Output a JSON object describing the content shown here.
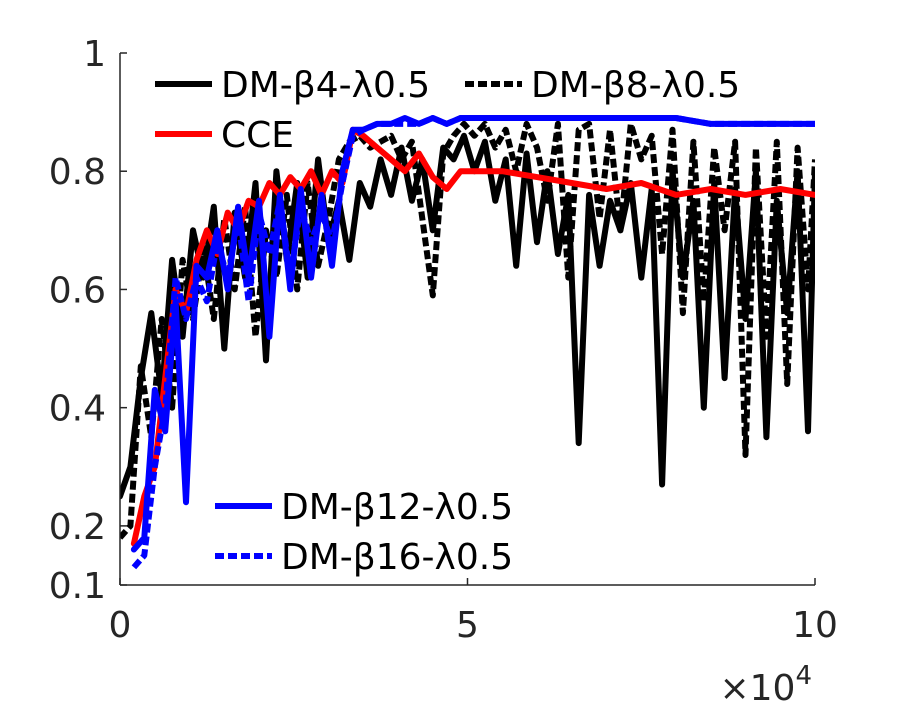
{
  "chart_data": {
    "type": "line",
    "title": "",
    "xlabel": "",
    "ylabel": "",
    "xlim": [
      0,
      10
    ],
    "ylim": [
      0.1,
      1
    ],
    "x_exponent_label": "×10",
    "x_exponent_power": "4",
    "x_ticks": [
      {
        "value": 0,
        "label": "0"
      },
      {
        "value": 5,
        "label": "5"
      },
      {
        "value": 10,
        "label": "10"
      }
    ],
    "y_ticks": [
      {
        "value": 0.1,
        "label": "0.1"
      },
      {
        "value": 0.2,
        "label": "0.2"
      },
      {
        "value": 0.4,
        "label": "0.4"
      },
      {
        "value": 0.6,
        "label": "0.6"
      },
      {
        "value": 0.8,
        "label": "0.8"
      },
      {
        "value": 1,
        "label": "1"
      }
    ],
    "grid": false,
    "legends": [
      {
        "placement": "top-left",
        "entries": [
          "DM-β4-λ0.5",
          "DM-β8-λ0.5",
          "CCE"
        ]
      },
      {
        "placement": "bottom-left",
        "entries": [
          "DM-β12-λ0.5",
          "DM-β16-λ0.5"
        ]
      }
    ],
    "series": [
      {
        "name": "DM-β4-λ0.5",
        "color": "#000000",
        "dash": "solid",
        "x": [
          0,
          0.15,
          0.3,
          0.45,
          0.6,
          0.75,
          0.9,
          1.05,
          1.2,
          1.35,
          1.5,
          1.65,
          1.8,
          1.95,
          2.1,
          2.25,
          2.4,
          2.55,
          2.7,
          2.85,
          3,
          3.15,
          3.3,
          3.45,
          3.6,
          3.75,
          3.9,
          4.05,
          4.2,
          4.35,
          4.5,
          4.65,
          4.8,
          4.95,
          5.1,
          5.25,
          5.4,
          5.55,
          5.7,
          5.85,
          6,
          6.15,
          6.3,
          6.45,
          6.6,
          6.75,
          6.9,
          7.05,
          7.2,
          7.35,
          7.5,
          7.65,
          7.8,
          7.95,
          8.1,
          8.25,
          8.4,
          8.55,
          8.7,
          8.85,
          9,
          9.15,
          9.3,
          9.45,
          9.6,
          9.75,
          9.9,
          10
        ],
        "y": [
          0.25,
          0.3,
          0.45,
          0.56,
          0.42,
          0.65,
          0.52,
          0.7,
          0.62,
          0.74,
          0.5,
          0.73,
          0.62,
          0.78,
          0.48,
          0.8,
          0.65,
          0.78,
          0.62,
          0.82,
          0.68,
          0.75,
          0.65,
          0.78,
          0.74,
          0.82,
          0.76,
          0.84,
          0.75,
          0.82,
          0.7,
          0.84,
          0.82,
          0.86,
          0.8,
          0.85,
          0.75,
          0.82,
          0.64,
          0.83,
          0.68,
          0.8,
          0.66,
          0.76,
          0.34,
          0.76,
          0.64,
          0.75,
          0.7,
          0.78,
          0.62,
          0.77,
          0.27,
          0.8,
          0.62,
          0.75,
          0.4,
          0.78,
          0.45,
          0.77,
          0.55,
          0.8,
          0.35,
          0.75,
          0.56,
          0.8,
          0.36,
          0.8
        ]
      },
      {
        "name": "DM-β8-λ0.5",
        "color": "#000000",
        "dash": "dotted",
        "x": [
          0,
          0.15,
          0.3,
          0.45,
          0.6,
          0.75,
          0.9,
          1.05,
          1.2,
          1.35,
          1.5,
          1.65,
          1.8,
          1.95,
          2.1,
          2.25,
          2.4,
          2.55,
          2.7,
          2.85,
          3,
          3.15,
          3.3,
          3.45,
          3.6,
          3.75,
          3.9,
          4.05,
          4.2,
          4.35,
          4.5,
          4.65,
          4.8,
          4.95,
          5.1,
          5.25,
          5.4,
          5.55,
          5.7,
          5.85,
          6,
          6.15,
          6.3,
          6.45,
          6.6,
          6.75,
          6.9,
          7.05,
          7.2,
          7.35,
          7.5,
          7.65,
          7.8,
          7.95,
          8.1,
          8.25,
          8.4,
          8.55,
          8.7,
          8.85,
          9,
          9.15,
          9.3,
          9.45,
          9.6,
          9.75,
          9.9,
          10
        ],
        "y": [
          0.18,
          0.2,
          0.47,
          0.35,
          0.55,
          0.4,
          0.65,
          0.55,
          0.67,
          0.55,
          0.72,
          0.6,
          0.74,
          0.52,
          0.7,
          0.62,
          0.76,
          0.6,
          0.78,
          0.64,
          0.72,
          0.82,
          0.85,
          0.86,
          0.84,
          0.85,
          0.86,
          0.82,
          0.85,
          0.72,
          0.59,
          0.83,
          0.86,
          0.88,
          0.86,
          0.88,
          0.84,
          0.87,
          0.8,
          0.88,
          0.84,
          0.75,
          0.88,
          0.62,
          0.87,
          0.88,
          0.72,
          0.87,
          0.7,
          0.88,
          0.82,
          0.86,
          0.66,
          0.87,
          0.56,
          0.85,
          0.58,
          0.84,
          0.7,
          0.85,
          0.32,
          0.84,
          0.52,
          0.85,
          0.44,
          0.84,
          0.6,
          0.82
        ]
      },
      {
        "name": "CCE",
        "color": "#ff0000",
        "dash": "solid",
        "x": [
          0.2,
          0.35,
          0.5,
          0.65,
          0.8,
          0.95,
          1.1,
          1.25,
          1.4,
          1.55,
          1.7,
          1.85,
          2,
          2.15,
          2.3,
          2.45,
          2.6,
          2.75,
          2.9,
          3.05,
          3.2,
          3.35,
          3.5,
          3.7,
          3.9,
          4.1,
          4.3,
          4.5,
          4.7,
          4.9,
          5.1,
          5.5,
          6,
          6.5,
          7,
          7.5,
          8,
          8.5,
          9,
          9.5,
          10
        ],
        "y": [
          0.17,
          0.25,
          0.3,
          0.45,
          0.6,
          0.56,
          0.65,
          0.7,
          0.66,
          0.73,
          0.7,
          0.75,
          0.74,
          0.78,
          0.76,
          0.79,
          0.77,
          0.8,
          0.76,
          0.8,
          0.78,
          0.87,
          0.86,
          0.84,
          0.82,
          0.8,
          0.83,
          0.79,
          0.77,
          0.8,
          0.8,
          0.8,
          0.79,
          0.78,
          0.77,
          0.78,
          0.76,
          0.77,
          0.76,
          0.77,
          0.76
        ]
      },
      {
        "name": "DM-β12-λ0.5",
        "color": "#0000ff",
        "dash": "solid",
        "x": [
          0.2,
          0.35,
          0.5,
          0.65,
          0.8,
          0.95,
          1.1,
          1.25,
          1.4,
          1.55,
          1.7,
          1.85,
          2,
          2.15,
          2.3,
          2.45,
          2.6,
          2.75,
          2.9,
          3.05,
          3.2,
          3.35,
          3.5,
          3.7,
          3.9,
          4.1,
          4.3,
          4.5,
          4.7,
          4.9,
          5.1,
          5.5,
          6,
          6.5,
          7,
          7.5,
          8,
          8.5,
          9,
          9.5,
          10
        ],
        "y": [
          0.16,
          0.18,
          0.43,
          0.36,
          0.58,
          0.24,
          0.64,
          0.62,
          0.7,
          0.6,
          0.74,
          0.62,
          0.75,
          0.52,
          0.76,
          0.6,
          0.77,
          0.62,
          0.76,
          0.64,
          0.8,
          0.87,
          0.87,
          0.88,
          0.88,
          0.89,
          0.88,
          0.89,
          0.88,
          0.89,
          0.89,
          0.89,
          0.89,
          0.89,
          0.89,
          0.89,
          0.89,
          0.88,
          0.88,
          0.88,
          0.88
        ]
      },
      {
        "name": "DM-β16-λ0.5",
        "color": "#0000ff",
        "dash": "dotted",
        "x": [
          0.2,
          0.35,
          0.5,
          0.65,
          0.8,
          0.95,
          1.1,
          1.25,
          1.4,
          1.55,
          1.7,
          1.85,
          2,
          2.15,
          2.3,
          2.45,
          2.6,
          2.75,
          2.9,
          3.05,
          3.2,
          3.35,
          3.5,
          3.7,
          3.9,
          4.1,
          4.3,
          4.5,
          4.7,
          4.9,
          5.1,
          5.5,
          6,
          6.5,
          7,
          7.5,
          8,
          8.5,
          9,
          9.5,
          10
        ],
        "y": [
          0.13,
          0.15,
          0.3,
          0.4,
          0.62,
          0.55,
          0.62,
          0.58,
          0.68,
          0.62,
          0.72,
          0.58,
          0.73,
          0.66,
          0.75,
          0.62,
          0.74,
          0.68,
          0.73,
          0.68,
          0.78,
          0.86,
          0.87,
          0.88,
          0.88,
          0.88,
          0.88,
          0.89,
          0.88,
          0.89,
          0.89,
          0.89,
          0.89,
          0.89,
          0.89,
          0.89,
          0.89,
          0.88,
          0.88,
          0.88,
          0.88
        ]
      }
    ]
  }
}
